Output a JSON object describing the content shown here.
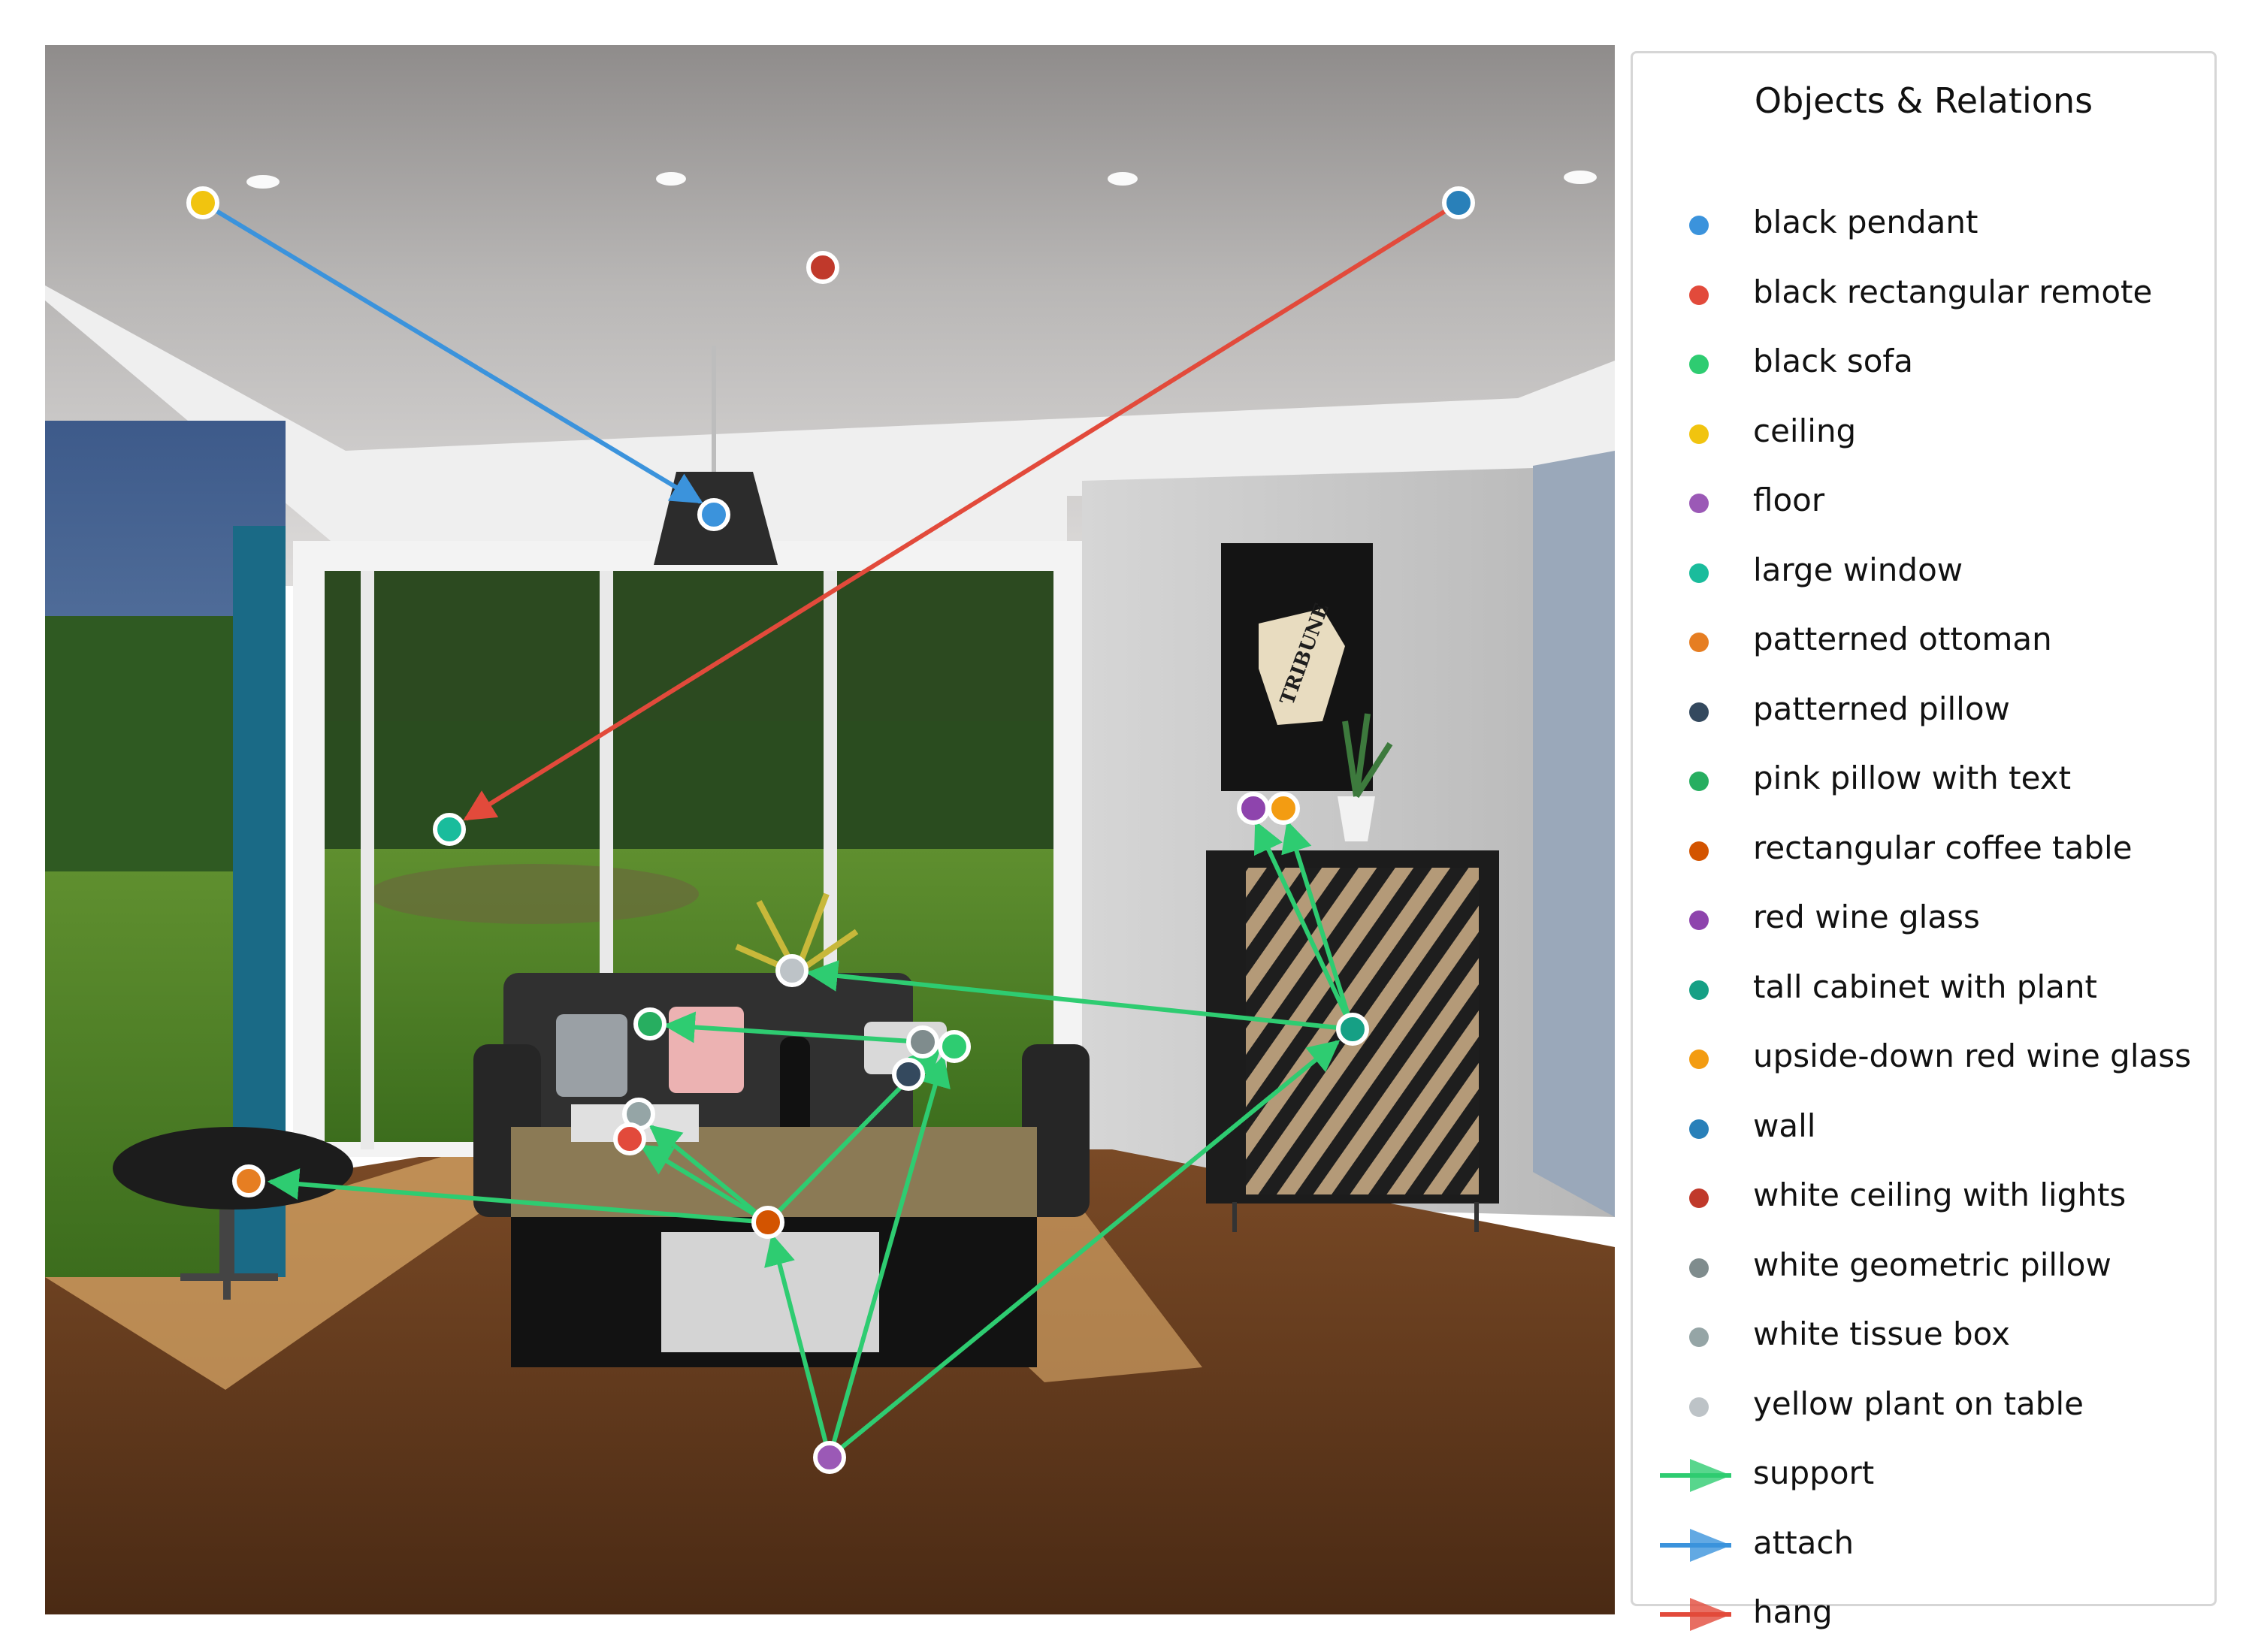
{
  "legend": {
    "title": "Objects & Relations",
    "objects": [
      {
        "label": "black pendant",
        "color": "#3b93dc"
      },
      {
        "label": "black rectangular remote",
        "color": "#e24a3b"
      },
      {
        "label": "black sofa",
        "color": "#2ecc71"
      },
      {
        "label": "ceiling",
        "color": "#f1c40f"
      },
      {
        "label": "floor",
        "color": "#9b59b6"
      },
      {
        "label": "large window",
        "color": "#1abc9c"
      },
      {
        "label": "patterned ottoman",
        "color": "#e67e22"
      },
      {
        "label": "patterned pillow",
        "color": "#34495e"
      },
      {
        "label": "pink pillow with text",
        "color": "#27ae60"
      },
      {
        "label": "rectangular coffee table",
        "color": "#d35400"
      },
      {
        "label": "red wine glass",
        "color": "#8e44ad"
      },
      {
        "label": "tall cabinet with plant",
        "color": "#16a085"
      },
      {
        "label": "upside-down red wine glass",
        "color": "#f39c12"
      },
      {
        "label": "wall",
        "color": "#2980b9"
      },
      {
        "label": "white ceiling with lights",
        "color": "#c0392b"
      },
      {
        "label": "white geometric pillow",
        "color": "#7f8c8d"
      },
      {
        "label": "white tissue box",
        "color": "#95a5a6"
      },
      {
        "label": "yellow plant on table",
        "color": "#bdc3c7"
      }
    ],
    "relations": [
      {
        "label": "support",
        "color": "#2ecc71"
      },
      {
        "label": "attach",
        "color": "#3b93dc"
      },
      {
        "label": "hang",
        "color": "#e24a3b"
      }
    ]
  },
  "relations_drawn": [
    {
      "from": "ceiling",
      "to": "black pendant",
      "type": "attach"
    },
    {
      "from": "wall",
      "to": "large window",
      "type": "hang"
    },
    {
      "from": "floor",
      "to": "rectangular coffee table",
      "type": "support"
    },
    {
      "from": "floor",
      "to": "white geometric pillow",
      "type": "support"
    },
    {
      "from": "floor",
      "to": "tall cabinet with plant",
      "type": "support"
    },
    {
      "from": "rectangular coffee table",
      "to": "patterned ottoman",
      "type": "support"
    },
    {
      "from": "rectangular coffee table",
      "to": "black rectangular remote",
      "type": "support"
    },
    {
      "from": "rectangular coffee table",
      "to": "white tissue box",
      "type": "support"
    },
    {
      "from": "rectangular coffee table",
      "to": "pink pillow with text",
      "type": "support"
    },
    {
      "from": "tall cabinet with plant",
      "to": "yellow plant on table",
      "type": "support"
    },
    {
      "from": "tall cabinet with plant",
      "to": "red wine glass",
      "type": "support"
    },
    {
      "from": "tall cabinet with plant",
      "to": "upside-down red wine glass",
      "type": "support"
    },
    {
      "from": "white geometric pillow",
      "to": "pink pillow with text",
      "type": "support"
    }
  ],
  "poster": {
    "text": "TRIBUNE"
  }
}
